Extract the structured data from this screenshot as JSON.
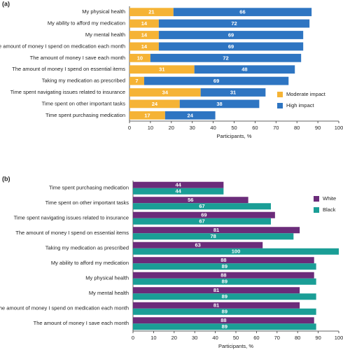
{
  "chart_data": [
    {
      "type": "stacked_bar",
      "panel_label": "(a)",
      "x_label": "Participants, %",
      "categories": [
        "My physical health",
        "My ability to afford my medication",
        "My mental health",
        "The amount of money I spend on medication each month",
        "The amount of money I save each month",
        "The amount of money I spend on essential items",
        "Taking my medication as prescribed",
        "Time spent navigating issues related to insurance",
        "Time spent on other important tasks",
        "Time spent purchasing medication"
      ],
      "series": [
        {
          "name": "Moderate impact",
          "color": "#f5b335",
          "values": [
            21,
            14,
            14,
            14,
            10,
            31,
            7,
            34,
            24,
            17
          ]
        },
        {
          "name": "High impact",
          "color": "#2e75c2",
          "values": [
            66,
            72,
            69,
            69,
            72,
            48,
            69,
            31,
            38,
            24
          ]
        }
      ],
      "xlim": [
        0,
        100
      ],
      "xticks": [
        0,
        10,
        20,
        30,
        40,
        50,
        60,
        70,
        80,
        90,
        100
      ],
      "legend": "lower right"
    },
    {
      "type": "grouped_bar",
      "panel_label": "(b)",
      "x_label": "Participants, %",
      "categories": [
        "Time spent purchasing medication",
        "Time spent on other important tasks",
        "Time spent navigating issues related to insurance",
        "The amount of money I spend on essential items",
        "Taking my medication as prescribed",
        "My ability to afford my medication",
        "My physical health",
        "My mental health",
        "The amount of money I spend on medication each month",
        "The amount of money I save each month"
      ],
      "series": [
        {
          "name": "White",
          "color": "#6b2c7a",
          "values": [
            44,
            56,
            69,
            81,
            63,
            88,
            88,
            81,
            81,
            88
          ]
        },
        {
          "name": "Black",
          "color": "#1a9e96",
          "values": [
            44,
            67,
            67,
            78,
            100,
            89,
            89,
            89,
            89,
            89
          ]
        }
      ],
      "xlim": [
        0,
        100
      ],
      "xticks": [
        0,
        10,
        20,
        30,
        40,
        50,
        60,
        70,
        80,
        90,
        100
      ],
      "legend": "upper right"
    }
  ]
}
